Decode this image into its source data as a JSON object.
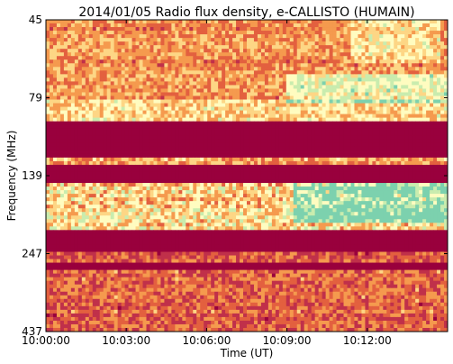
{
  "chart_data": {
    "type": "heatmap",
    "title": "2014/01/05  Radio flux density, e-CALLISTO (HUMAIN)",
    "xlabel": "Time (UT)",
    "ylabel": "Frequency (MHz)",
    "x_ticks": [
      "10:00:00",
      "10:03:00",
      "10:06:00",
      "10:09:00",
      "10:12:00"
    ],
    "y_ticks": [
      "45",
      "79",
      "139",
      "247",
      "437"
    ],
    "x_range_minutes": [
      0,
      15
    ],
    "y_range_tick_index": [
      0,
      4
    ],
    "colormap": [
      "#99003d",
      "#c0304a",
      "#e3603f",
      "#f59a4e",
      "#fdd685",
      "#fffcc0",
      "#c9ecae",
      "#7cd1ae"
    ],
    "grid": false,
    "bands": [
      {
        "from": 0.0,
        "to": 0.26,
        "level": 0.42,
        "noise": 0.3
      },
      {
        "from": 0.26,
        "to": 0.33,
        "level": 0.58,
        "noise": 0.35
      },
      {
        "from": 0.33,
        "to": 0.44,
        "level": 0.0,
        "noise": 0.02
      },
      {
        "from": 0.44,
        "to": 0.47,
        "level": 0.45,
        "noise": 0.35
      },
      {
        "from": 0.47,
        "to": 0.52,
        "level": 0.0,
        "noise": 0.02
      },
      {
        "from": 0.52,
        "to": 0.68,
        "level": 0.6,
        "noise": 0.45
      },
      {
        "from": 0.68,
        "to": 0.75,
        "level": 0.0,
        "noise": 0.02
      },
      {
        "from": 0.75,
        "to": 0.78,
        "level": 0.3,
        "noise": 0.3
      },
      {
        "from": 0.78,
        "to": 0.8,
        "level": 0.0,
        "noise": 0.02
      },
      {
        "from": 0.8,
        "to": 1.0,
        "level": 0.32,
        "noise": 0.32
      }
    ],
    "bursts": [
      {
        "t0": 0.62,
        "t1": 1.0,
        "f0": 0.52,
        "f1": 0.65,
        "boost": 0.4
      },
      {
        "t0": 0.6,
        "t1": 1.0,
        "f0": 0.18,
        "f1": 0.27,
        "boost": 0.3
      },
      {
        "t0": 0.76,
        "t1": 0.98,
        "f0": 0.0,
        "f1": 0.14,
        "boost": 0.2
      }
    ]
  }
}
